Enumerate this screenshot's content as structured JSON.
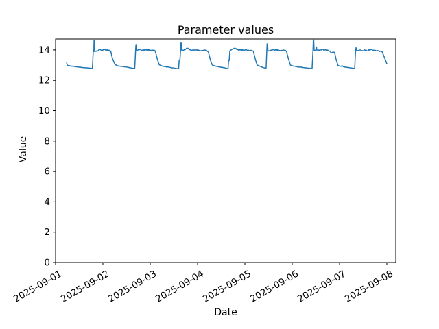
{
  "figure": {
    "kind": "matplotlib-line-figure",
    "background": "#ffffff"
  },
  "chart_data": {
    "type": "line",
    "title": "Parameter values",
    "xlabel": "Date",
    "ylabel": "Value",
    "grid": false,
    "legend": null,
    "line_color": "#1f77b4",
    "line_width": 1.5,
    "axis_color": "#000000",
    "x_unit": "days since 2025-09-01 00:00",
    "x_ticks_days": [
      0,
      1,
      2,
      3,
      4,
      5,
      6,
      7
    ],
    "x_tick_labels": [
      "2025-09-01",
      "2025-09-02",
      "2025-09-03",
      "2025-09-04",
      "2025-09-05",
      "2025-09-06",
      "2025-09-07",
      "2025-09-08"
    ],
    "x_tick_rotation_deg": 30,
    "y_ticks": [
      0,
      2,
      4,
      6,
      8,
      10,
      12,
      14
    ],
    "ylim": [
      0,
      14.72
    ],
    "xlim_days": [
      0,
      7.19
    ],
    "series": [
      {
        "name": "parameter",
        "description": "daily square-wave pattern: low ~12.8, high plateau ~13.95 with noise, overshoot spikes on rises",
        "points_day_value_noise": [
          [
            0.235,
            13.16,
            0
          ],
          [
            0.245,
            13.02,
            0
          ],
          [
            0.26,
            12.97,
            0.012
          ],
          [
            0.45,
            12.89,
            0.012
          ],
          [
            0.62,
            12.83,
            0.01
          ],
          [
            0.74,
            12.8,
            0.008
          ],
          [
            0.778,
            12.79,
            0
          ],
          [
            0.795,
            13.86,
            0
          ],
          [
            0.808,
            13.9,
            0
          ],
          [
            0.813,
            14.62,
            0
          ],
          [
            0.818,
            14.62,
            0
          ],
          [
            0.828,
            13.9,
            0.03
          ],
          [
            0.9,
            13.95,
            0.04
          ],
          [
            0.945,
            14.05,
            0.05
          ],
          [
            0.975,
            13.97,
            0.04
          ],
          [
            1.02,
            14.04,
            0.045
          ],
          [
            1.06,
            13.98,
            0.04
          ],
          [
            1.12,
            13.97,
            0.03
          ],
          [
            1.165,
            13.93,
            0
          ],
          [
            1.2,
            13.45,
            0
          ],
          [
            1.255,
            13.04,
            0
          ],
          [
            1.32,
            12.95,
            0.012
          ],
          [
            1.5,
            12.87,
            0.012
          ],
          [
            1.62,
            12.8,
            0.008
          ],
          [
            1.672,
            12.78,
            0
          ],
          [
            1.69,
            13.88,
            0
          ],
          [
            1.698,
            14.35,
            0
          ],
          [
            1.706,
            14.35,
            0
          ],
          [
            1.716,
            13.93,
            0.03
          ],
          [
            1.78,
            14.04,
            0.05
          ],
          [
            1.84,
            13.96,
            0.04
          ],
          [
            1.92,
            14.01,
            0.045
          ],
          [
            2.0,
            13.98,
            0.04
          ],
          [
            2.06,
            13.99,
            0.035
          ],
          [
            2.105,
            13.93,
            0
          ],
          [
            2.15,
            13.4,
            0
          ],
          [
            2.19,
            13.02,
            0
          ],
          [
            2.26,
            12.93,
            0.012
          ],
          [
            2.42,
            12.85,
            0.012
          ],
          [
            2.54,
            12.79,
            0.008
          ],
          [
            2.6,
            12.76,
            0
          ],
          [
            2.612,
            13.34,
            0
          ],
          [
            2.628,
            13.36,
            0
          ],
          [
            2.64,
            13.94,
            0
          ],
          [
            2.648,
            14.45,
            0
          ],
          [
            2.656,
            14.45,
            0
          ],
          [
            2.666,
            13.96,
            0.035
          ],
          [
            2.73,
            14.02,
            0.05
          ],
          [
            2.775,
            14.13,
            0.06
          ],
          [
            2.82,
            14.05,
            0.055
          ],
          [
            2.87,
            13.97,
            0.045
          ],
          [
            2.95,
            14.02,
            0.04
          ],
          [
            3.05,
            13.96,
            0.04
          ],
          [
            3.15,
            13.99,
            0.035
          ],
          [
            3.225,
            13.91,
            0
          ],
          [
            3.27,
            13.35,
            0
          ],
          [
            3.31,
            13.01,
            0
          ],
          [
            3.38,
            12.93,
            0.012
          ],
          [
            3.52,
            12.85,
            0.012
          ],
          [
            3.61,
            12.79,
            0.008
          ],
          [
            3.645,
            12.78,
            0
          ],
          [
            3.655,
            13.28,
            0
          ],
          [
            3.668,
            13.3,
            0
          ],
          [
            3.682,
            13.94,
            0.03
          ],
          [
            3.74,
            14.04,
            0.055
          ],
          [
            3.8,
            14.1,
            0.06
          ],
          [
            3.86,
            13.99,
            0.05
          ],
          [
            3.95,
            14.01,
            0.04
          ],
          [
            4.05,
            13.97,
            0.04
          ],
          [
            4.13,
            13.98,
            0.03
          ],
          [
            4.178,
            13.92,
            0
          ],
          [
            4.22,
            13.4,
            0
          ],
          [
            4.258,
            13.01,
            0
          ],
          [
            4.32,
            12.92,
            0.012
          ],
          [
            4.4,
            12.83,
            0.008
          ],
          [
            4.448,
            12.8,
            0
          ],
          [
            4.462,
            13.88,
            0
          ],
          [
            4.47,
            14.4,
            0
          ],
          [
            4.478,
            14.4,
            0
          ],
          [
            4.488,
            13.93,
            0.03
          ],
          [
            4.56,
            13.99,
            0.045
          ],
          [
            4.65,
            14.03,
            0.045
          ],
          [
            4.74,
            13.96,
            0.04
          ],
          [
            4.82,
            13.99,
            0.035
          ],
          [
            4.878,
            13.91,
            0
          ],
          [
            4.92,
            13.42,
            0
          ],
          [
            4.962,
            13.0,
            0
          ],
          [
            5.03,
            12.93,
            0.012
          ],
          [
            5.22,
            12.85,
            0.012
          ],
          [
            5.36,
            12.79,
            0.008
          ],
          [
            5.42,
            12.78,
            0
          ],
          [
            5.438,
            13.9,
            0
          ],
          [
            5.446,
            14.65,
            0
          ],
          [
            5.454,
            14.65,
            0
          ],
          [
            5.464,
            13.96,
            0
          ],
          [
            5.5,
            14.0,
            0
          ],
          [
            5.512,
            14.2,
            0
          ],
          [
            5.524,
            13.96,
            0.04
          ],
          [
            5.62,
            14.0,
            0.045
          ],
          [
            5.72,
            13.98,
            0.04
          ],
          [
            5.8,
            13.92,
            0.025
          ],
          [
            5.825,
            13.79,
            0.015
          ],
          [
            5.862,
            13.86,
            0
          ],
          [
            5.895,
            13.84,
            0
          ],
          [
            5.93,
            13.35,
            0
          ],
          [
            5.968,
            12.97,
            0
          ],
          [
            6.03,
            12.92,
            0.012
          ],
          [
            6.058,
            12.96,
            0
          ],
          [
            6.085,
            12.89,
            0.012
          ],
          [
            6.25,
            12.81,
            0.008
          ],
          [
            6.32,
            12.78,
            0
          ],
          [
            6.338,
            13.9,
            0
          ],
          [
            6.35,
            14.15,
            0
          ],
          [
            6.362,
            13.94,
            0.035
          ],
          [
            6.45,
            14.0,
            0.05
          ],
          [
            6.55,
            13.96,
            0.045
          ],
          [
            6.65,
            14.01,
            0.045
          ],
          [
            6.76,
            13.97,
            0.04
          ],
          [
            6.86,
            13.92,
            0.02
          ],
          [
            6.9,
            13.88,
            0
          ],
          [
            6.95,
            13.5,
            0
          ],
          [
            7.0,
            13.08,
            0
          ]
        ]
      }
    ]
  }
}
